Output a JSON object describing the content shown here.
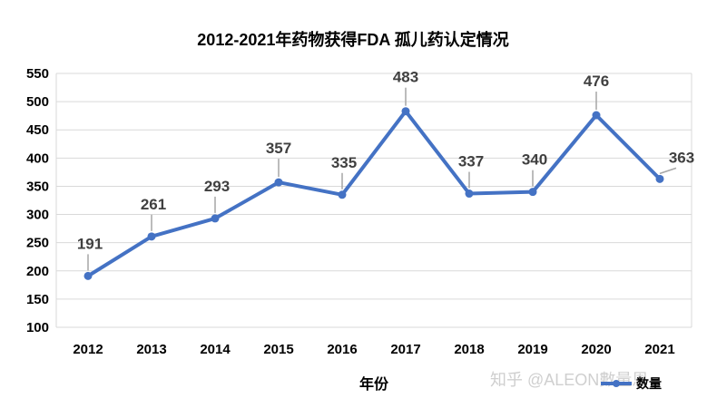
{
  "chart_data": {
    "type": "line",
    "title": "2012-2021年药物获得FDA 孤儿药认定情况",
    "xlabel": "年份",
    "ylabel": "",
    "categories": [
      "2012",
      "2013",
      "2014",
      "2015",
      "2016",
      "2017",
      "2018",
      "2019",
      "2020",
      "2021"
    ],
    "series": [
      {
        "name": "数量",
        "values": [
          191,
          261,
          293,
          357,
          335,
          483,
          337,
          340,
          476,
          363
        ]
      }
    ],
    "ylim": [
      100,
      550
    ],
    "yticks": [
      100,
      150,
      200,
      250,
      300,
      350,
      400,
      450,
      500,
      550
    ],
    "grid": true,
    "legend_position": "bottom-right",
    "data_labels": true,
    "colors": {
      "line": "#4472C4",
      "grid": "#d9d9d9",
      "label_leader": "#a6a6a6"
    }
  },
  "watermark": "知乎 @ALEON數量恩"
}
